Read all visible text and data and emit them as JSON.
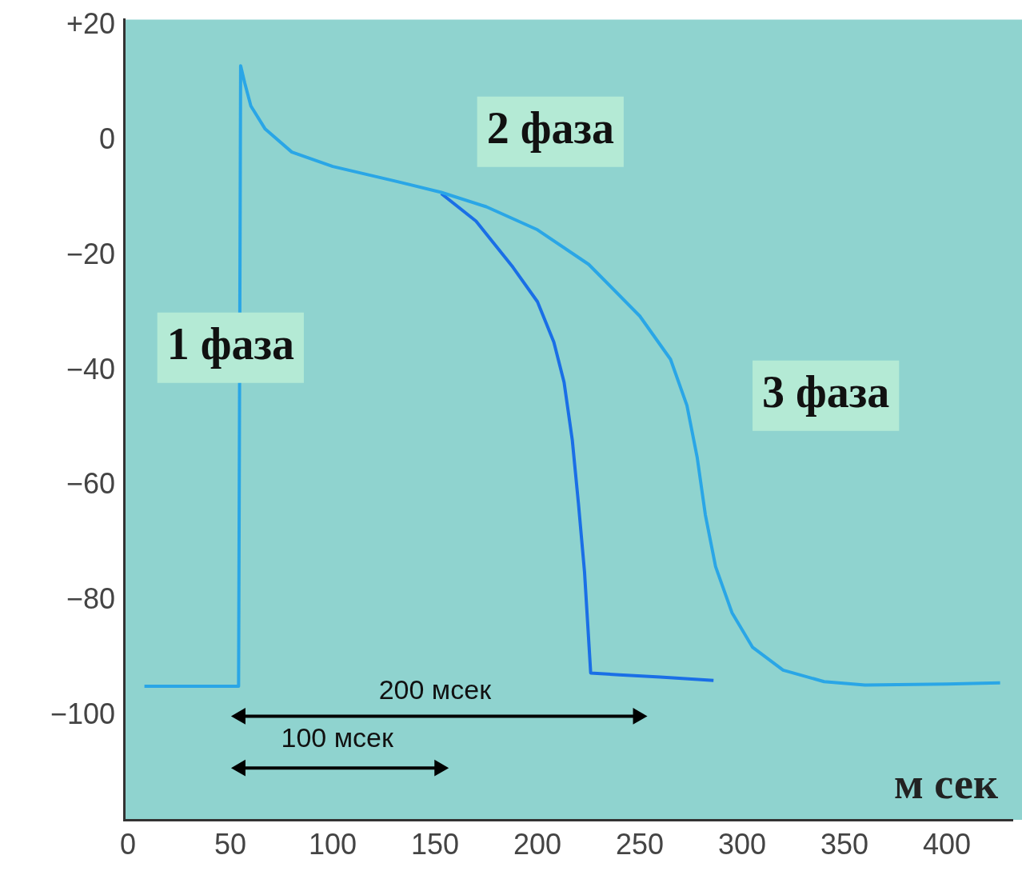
{
  "chart_data": {
    "type": "line",
    "xlabel": "м сек",
    "xlim": [
      -2,
      432
    ],
    "xticks": [
      0,
      50,
      100,
      150,
      200,
      250,
      300,
      350,
      400
    ],
    "ylim": [
      -118,
      21
    ],
    "yticks": [
      {
        "value": 20,
        "label": "+20"
      },
      0,
      {
        "value": -20,
        "label": "−20"
      },
      {
        "value": -40,
        "label": "−40"
      },
      {
        "value": -60,
        "label": "−60"
      },
      {
        "value": -80,
        "label": "−80"
      },
      {
        "value": -100,
        "label": "−100"
      }
    ],
    "series": [
      {
        "color": "#2aa6e6",
        "x": [
          8,
          54,
          55,
          57,
          60,
          67,
          80,
          100,
          130,
          153,
          175,
          200,
          225,
          250,
          265,
          273,
          278,
          282,
          287,
          295,
          305,
          320,
          340,
          360,
          400,
          426
        ],
        "values": [
          -94.8,
          -94.8,
          13,
          10,
          6,
          2,
          -2,
          -4.5,
          -7,
          -9,
          -11.5,
          -15.5,
          -21.5,
          -30.5,
          -38,
          -46,
          -55,
          -65,
          -74,
          -82,
          -88,
          -92,
          -94,
          -94.6,
          -94.4,
          -94.2
        ]
      },
      {
        "color": "#1a6fe6",
        "x": [
          153,
          170,
          188,
          200,
          208,
          213,
          217,
          220,
          223,
          226,
          240,
          260,
          286
        ],
        "values": [
          -9.2,
          -14,
          -22,
          -28,
          -35,
          -42,
          -52,
          -63,
          -75,
          -92.5,
          -92.8,
          -93.2,
          -93.8
        ]
      },
      {
        "color": "#000000",
        "marker": "triangle",
        "x": [
          55,
          249
        ],
        "values": [
          -100,
          -100
        ]
      },
      {
        "color": "#000000",
        "marker": "triangle",
        "x": [
          55,
          152
        ],
        "values": [
          -109,
          -109
        ]
      }
    ],
    "annotations": [
      "1 фаза",
      "2 фаза",
      "3 фаза",
      "200 мсек",
      "100 мсек"
    ],
    "grid": false,
    "legend": false,
    "marker": "none"
  }
}
